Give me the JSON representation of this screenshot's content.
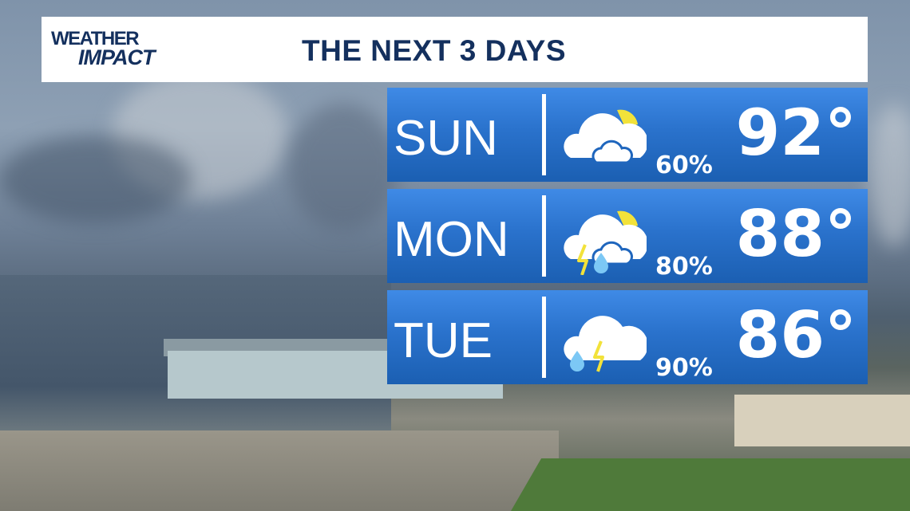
{
  "header": {
    "logo": "WEATHER IMPACT",
    "logo_line1": "WEATHER",
    "logo_line2": "IMPACT",
    "title": "THE NEXT 3 DAYS"
  },
  "colors": {
    "brand_navy": "#14305e",
    "panel_blue": "#2a72cc",
    "sun": "#f2e23a",
    "rain": "#7cc8f5"
  },
  "days": [
    {
      "day": "SUN",
      "icon": "partly-sunny-showers-icon",
      "precip": "60%",
      "high": "92°"
    },
    {
      "day": "MON",
      "icon": "partly-sunny-thunderstorm-icon",
      "precip": "80%",
      "high": "88°"
    },
    {
      "day": "TUE",
      "icon": "thunderstorm-rain-icon",
      "precip": "90%",
      "high": "86°"
    }
  ]
}
